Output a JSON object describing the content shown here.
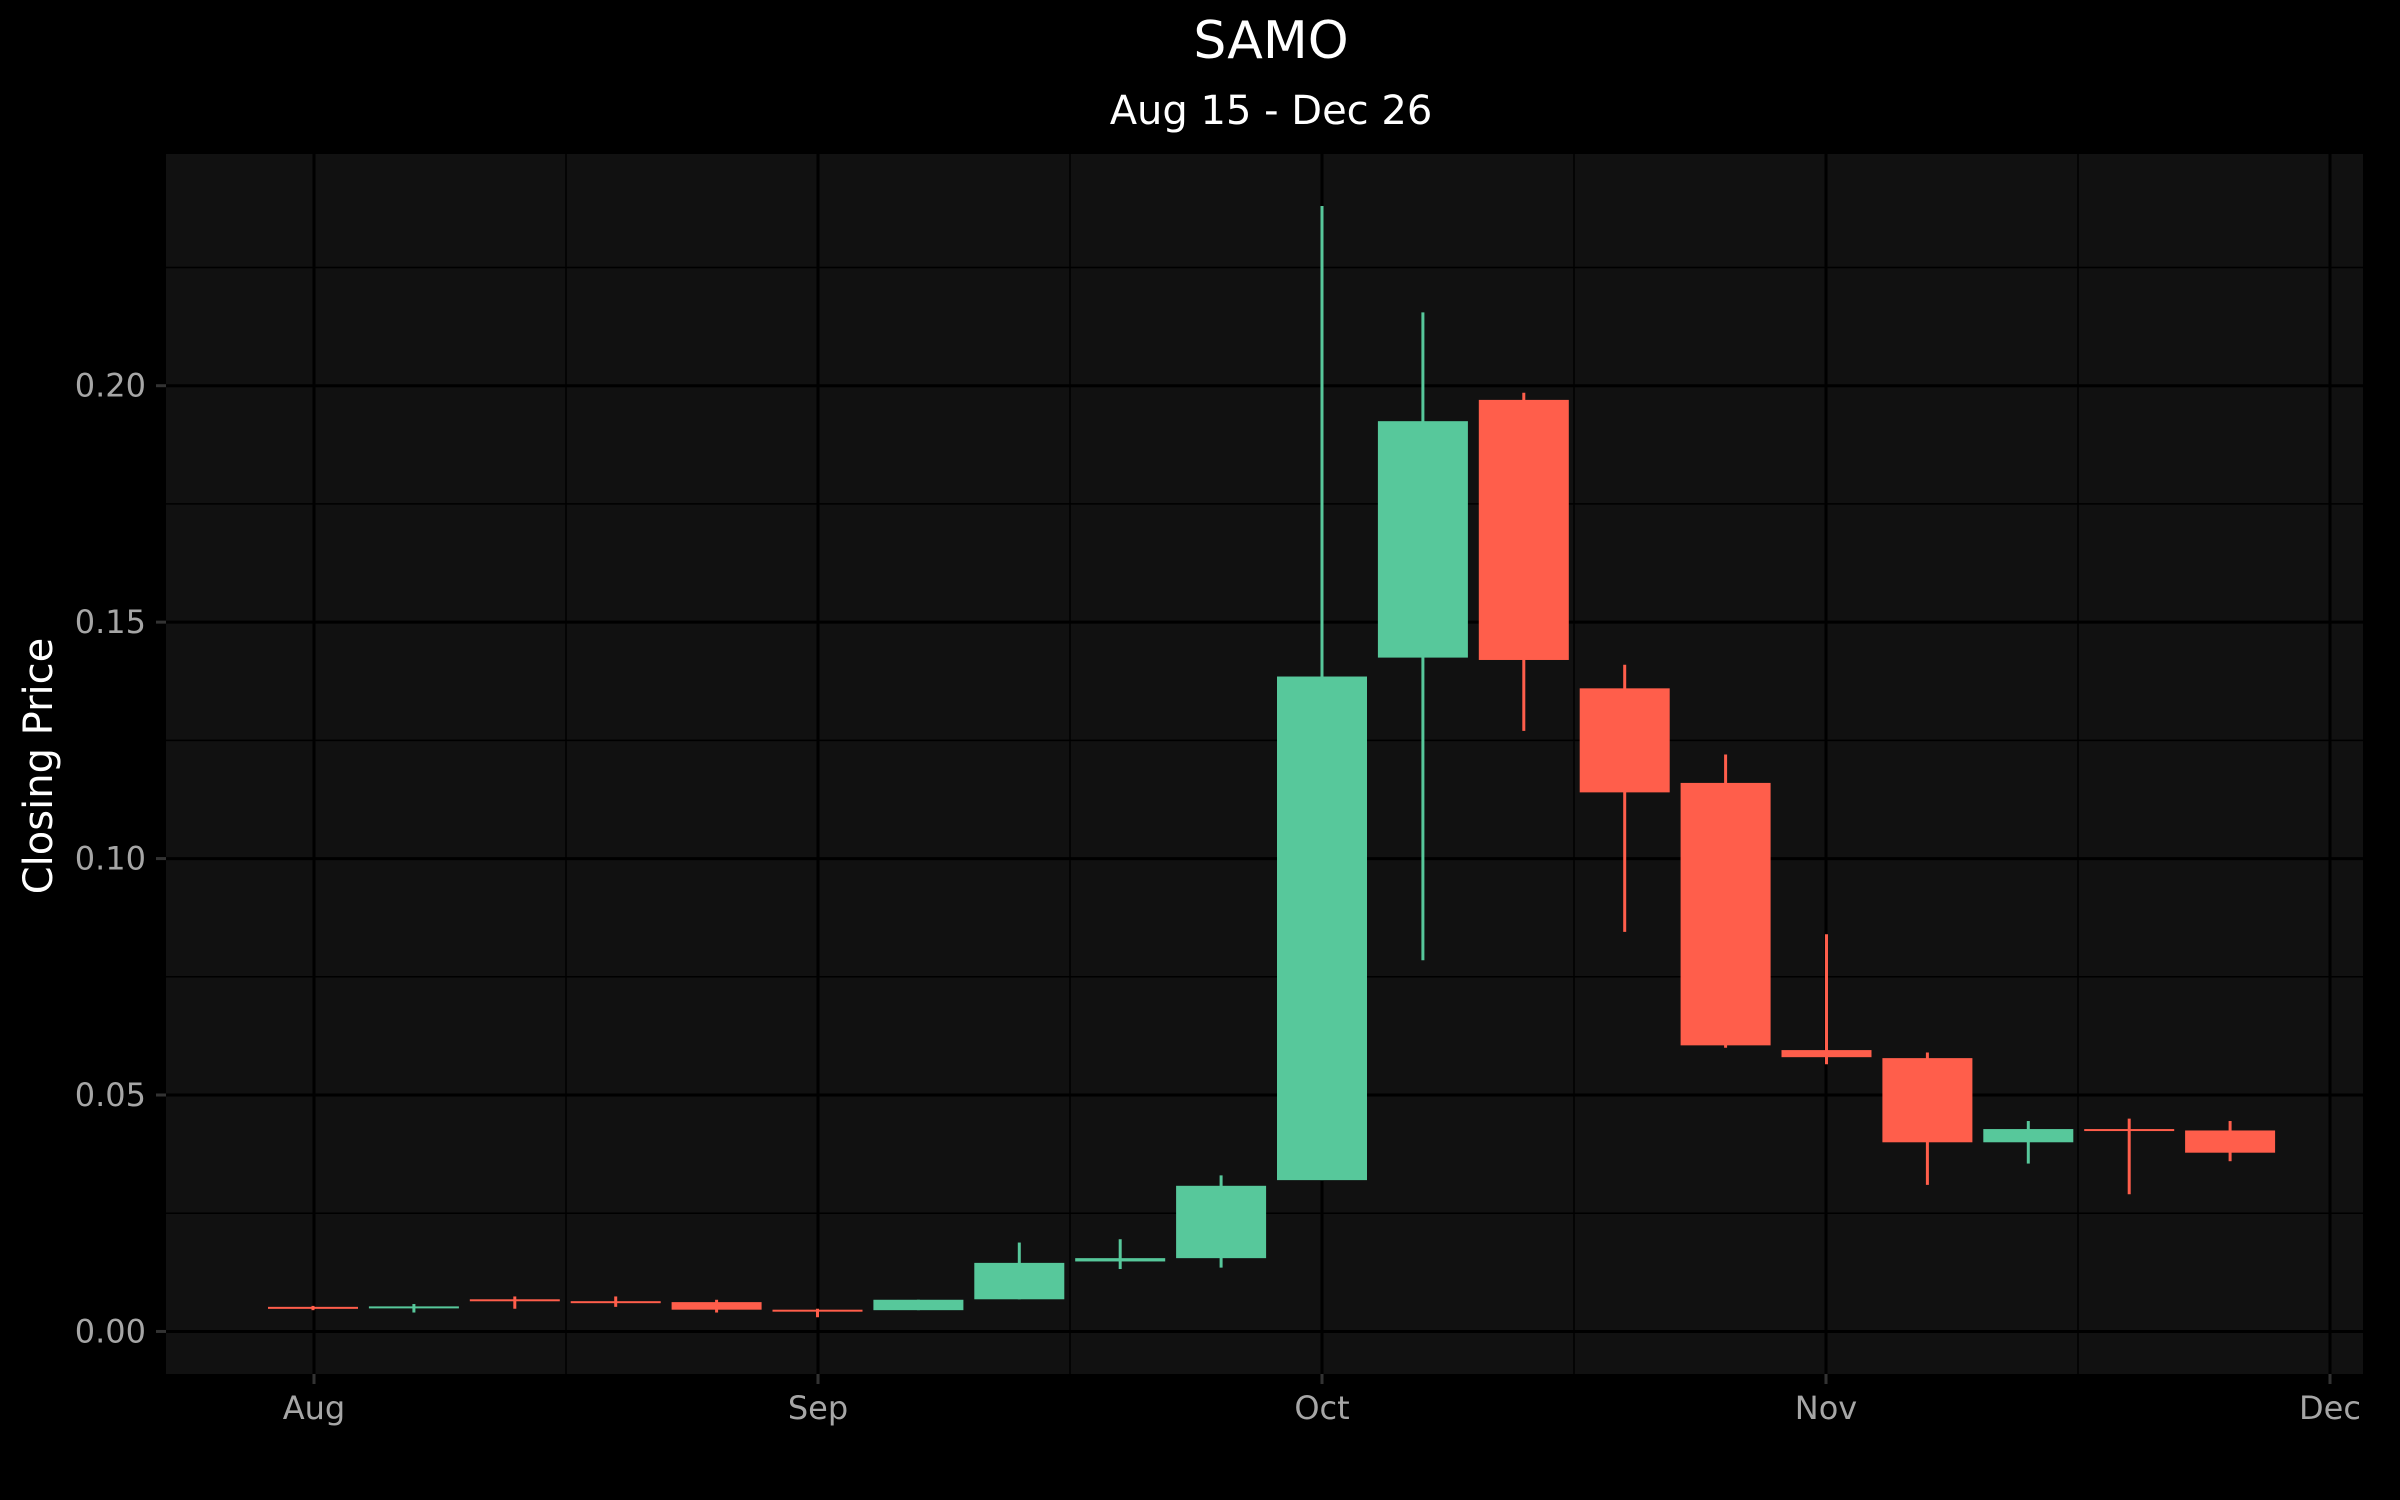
{
  "chart_data": {
    "type": "candlestick",
    "title": "SAMO",
    "subtitle": "Aug 15 - Dec 26",
    "xlabel": "",
    "ylabel": "Closing Price",
    "x_ticks": [
      "Aug",
      "Sep",
      "Oct",
      "Nov",
      "Dec"
    ],
    "y_ticks": [
      "0.00",
      "0.05",
      "0.10",
      "0.15",
      "0.20"
    ],
    "ylim": [
      -0.009,
      0.249
    ],
    "grid": true,
    "background": "#111111",
    "page_background": "#000000",
    "up_color": "#57C89B",
    "down_color": "#FF5E4B",
    "candles": [
      {
        "open": 0.0052,
        "high": 0.0054,
        "low": 0.0045,
        "close": 0.005
      },
      {
        "open": 0.005,
        "high": 0.0058,
        "low": 0.004,
        "close": 0.0053
      },
      {
        "open": 0.0068,
        "high": 0.0074,
        "low": 0.0048,
        "close": 0.0064
      },
      {
        "open": 0.0064,
        "high": 0.0074,
        "low": 0.0052,
        "close": 0.0062
      },
      {
        "open": 0.0062,
        "high": 0.0067,
        "low": 0.004,
        "close": 0.0046
      },
      {
        "open": 0.0046,
        "high": 0.0048,
        "low": 0.003,
        "close": 0.0042
      },
      {
        "open": 0.0045,
        "high": 0.0067,
        "low": 0.0045,
        "close": 0.0067
      },
      {
        "open": 0.0068,
        "high": 0.0188,
        "low": 0.0068,
        "close": 0.0145
      },
      {
        "open": 0.0148,
        "high": 0.0195,
        "low": 0.0132,
        "close": 0.0155
      },
      {
        "open": 0.0155,
        "high": 0.033,
        "low": 0.0135,
        "close": 0.0308
      },
      {
        "open": 0.032,
        "high": 0.238,
        "low": 0.032,
        "close": 0.1385
      },
      {
        "open": 0.1425,
        "high": 0.2155,
        "low": 0.0785,
        "close": 0.1925
      },
      {
        "open": 0.197,
        "high": 0.1985,
        "low": 0.127,
        "close": 0.142
      },
      {
        "open": 0.136,
        "high": 0.141,
        "low": 0.0845,
        "close": 0.114
      },
      {
        "open": 0.116,
        "high": 0.122,
        "low": 0.06,
        "close": 0.0605
      },
      {
        "open": 0.0595,
        "high": 0.084,
        "low": 0.0565,
        "close": 0.058
      },
      {
        "open": 0.0578,
        "high": 0.059,
        "low": 0.031,
        "close": 0.04
      },
      {
        "open": 0.04,
        "high": 0.0445,
        "low": 0.0355,
        "close": 0.0428
      },
      {
        "open": 0.0428,
        "high": 0.045,
        "low": 0.029,
        "close": 0.0425
      },
      {
        "open": 0.0425,
        "high": 0.0445,
        "low": 0.036,
        "close": 0.0378
      }
    ]
  }
}
